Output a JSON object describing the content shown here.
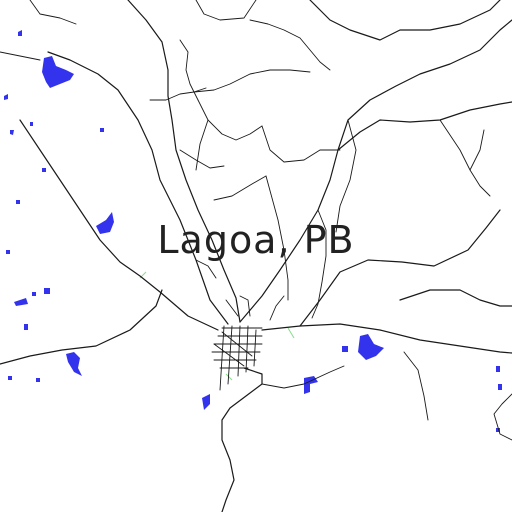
{
  "map": {
    "place_label": "Lagoa, PB",
    "colors": {
      "background": "#ffffff",
      "road": "#1a1a1a",
      "water": "#3333ee",
      "vegetation_line": "#88dd88",
      "label": "#222222"
    }
  }
}
